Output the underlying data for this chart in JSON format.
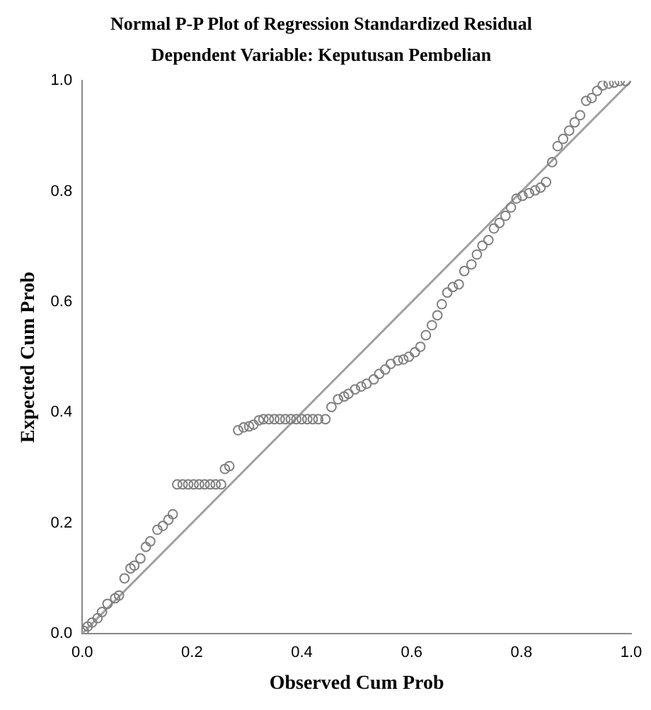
{
  "chart_data": {
    "type": "scatter",
    "title": "Normal P-P Plot of Regression Standardized Residual",
    "subtitle": "Dependent Variable: Keputusan Pembelian",
    "xlabel": "Observed Cum Prob",
    "ylabel": "Expected Cum Prob",
    "xlim": [
      0,
      1
    ],
    "ylim": [
      0,
      1
    ],
    "xticks": [
      {
        "value": 0,
        "label": "0.0"
      },
      {
        "value": 0.2,
        "label": "0.2"
      },
      {
        "value": 0.4,
        "label": "0.4"
      },
      {
        "value": 0.6,
        "label": "0.6"
      },
      {
        "value": 0.8,
        "label": "0.8"
      },
      {
        "value": 1,
        "label": "1.0"
      }
    ],
    "yticks": [
      {
        "value": 0,
        "label": "0.0"
      },
      {
        "value": 0.2,
        "label": "0.2"
      },
      {
        "value": 0.4,
        "label": "0.4"
      },
      {
        "value": 0.6,
        "label": "0.6"
      },
      {
        "value": 0.8,
        "label": "0.8"
      },
      {
        "value": 1,
        "label": "1.0"
      }
    ],
    "grid": false,
    "legend": false,
    "marker": "circle",
    "series": [
      {
        "color": "#808080",
        "x": [
          0.003,
          0.01,
          0.018,
          0.028,
          0.036,
          0.046,
          0.06,
          0.067,
          0.077,
          0.088,
          0.095,
          0.106,
          0.116,
          0.124,
          0.137,
          0.147,
          0.157,
          0.165,
          0.173,
          0.183,
          0.193,
          0.203,
          0.213,
          0.223,
          0.233,
          0.243,
          0.253,
          0.26,
          0.268,
          0.284,
          0.294,
          0.304,
          0.312,
          0.322,
          0.33,
          0.34,
          0.35,
          0.36,
          0.37,
          0.38,
          0.39,
          0.4,
          0.41,
          0.42,
          0.43,
          0.443,
          0.454,
          0.466,
          0.477,
          0.485,
          0.497,
          0.508,
          0.518,
          0.531,
          0.541,
          0.552,
          0.562,
          0.575,
          0.585,
          0.595,
          0.606,
          0.616,
          0.626,
          0.637,
          0.647,
          0.655,
          0.665,
          0.675,
          0.686,
          0.696,
          0.709,
          0.719,
          0.729,
          0.74,
          0.75,
          0.76,
          0.771,
          0.781,
          0.791,
          0.802,
          0.814,
          0.825,
          0.835,
          0.845,
          0.856,
          0.866,
          0.876,
          0.887,
          0.897,
          0.907,
          0.918,
          0.928,
          0.938,
          0.948,
          0.959,
          0.969,
          0.979,
          0.99
        ],
        "values": [
          0.005,
          0.013,
          0.02,
          0.028,
          0.039,
          0.054,
          0.064,
          0.069,
          0.1,
          0.118,
          0.123,
          0.136,
          0.157,
          0.167,
          0.188,
          0.195,
          0.206,
          0.216,
          0.27,
          0.27,
          0.27,
          0.27,
          0.27,
          0.27,
          0.27,
          0.27,
          0.27,
          0.298,
          0.303,
          0.368,
          0.373,
          0.375,
          0.378,
          0.386,
          0.388,
          0.388,
          0.388,
          0.388,
          0.388,
          0.388,
          0.388,
          0.388,
          0.388,
          0.388,
          0.388,
          0.388,
          0.41,
          0.424,
          0.429,
          0.434,
          0.442,
          0.447,
          0.452,
          0.46,
          0.47,
          0.478,
          0.488,
          0.494,
          0.496,
          0.501,
          0.509,
          0.519,
          0.54,
          0.558,
          0.576,
          0.596,
          0.617,
          0.627,
          0.632,
          0.656,
          0.668,
          0.686,
          0.702,
          0.712,
          0.733,
          0.743,
          0.756,
          0.771,
          0.787,
          0.792,
          0.797,
          0.802,
          0.807,
          0.817,
          0.853,
          0.882,
          0.895,
          0.91,
          0.925,
          0.938,
          0.964,
          0.969,
          0.982,
          0.992,
          0.995,
          0.997,
          1.0,
          1.0
        ]
      },
      {
        "type": "line",
        "color": "#a0a0a0",
        "x": [
          0,
          1
        ],
        "values": [
          0,
          1
        ],
        "marker": "none",
        "line_style": "solid"
      }
    ]
  }
}
